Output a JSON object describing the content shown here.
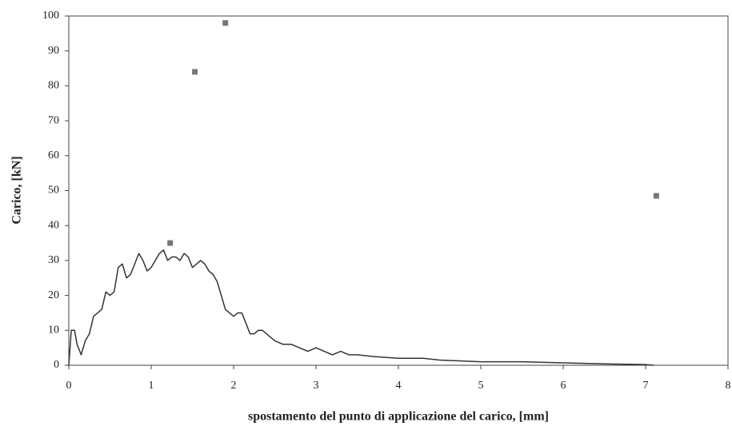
{
  "chart_data": {
    "type": "line",
    "xlabel": "spostamento del punto di applicazione del carico, [mm]",
    "ylabel": "Carico, [kN]",
    "xlim": [
      0,
      8
    ],
    "xticks": [
      0,
      1,
      2,
      3,
      4,
      5,
      6,
      7,
      8
    ],
    "ylim": [
      0,
      100
    ],
    "yticks": [
      0,
      10,
      20,
      30,
      40,
      50,
      60,
      70,
      80,
      90,
      100
    ],
    "series": [
      {
        "type": "line",
        "color": "#333333",
        "x": [
          0,
          0.03,
          0.07,
          0.1,
          0.15,
          0.2,
          0.25,
          0.3,
          0.35,
          0.4,
          0.45,
          0.5,
          0.55,
          0.6,
          0.65,
          0.7,
          0.75,
          0.8,
          0.85,
          0.9,
          0.95,
          1.0,
          1.05,
          1.1,
          1.15,
          1.2,
          1.25,
          1.3,
          1.35,
          1.4,
          1.45,
          1.5,
          1.55,
          1.6,
          1.65,
          1.7,
          1.75,
          1.8,
          1.85,
          1.9,
          1.95,
          2.0,
          2.05,
          2.1,
          2.15,
          2.2,
          2.25,
          2.3,
          2.35,
          2.4,
          2.5,
          2.6,
          2.7,
          2.8,
          2.9,
          3.0,
          3.1,
          3.2,
          3.3,
          3.4,
          3.5,
          3.7,
          4.0,
          4.3,
          4.5,
          5,
          5.5,
          6,
          6.5,
          7,
          7.1
        ],
        "values": [
          0,
          10,
          10,
          6,
          3,
          7,
          9,
          14,
          15,
          16,
          21,
          20,
          21,
          28,
          29,
          25,
          26,
          29,
          32,
          30,
          27,
          28,
          30,
          32,
          33,
          30,
          31,
          31,
          30,
          32,
          31,
          28,
          29,
          30,
          29,
          27,
          26,
          24,
          20,
          16,
          15,
          14,
          15,
          15,
          12,
          9,
          9,
          10,
          10,
          9,
          7,
          6,
          6,
          5,
          4,
          5,
          4,
          3,
          4,
          3,
          3,
          2.5,
          2,
          2,
          1.5,
          1,
          1,
          0.7,
          0.4,
          0.2,
          0
        ]
      },
      {
        "type": "scatter",
        "color": "#777777",
        "x": [
          1.23,
          1.53,
          1.9,
          7.13
        ],
        "values": [
          35,
          84,
          98,
          48.5
        ]
      }
    ]
  }
}
